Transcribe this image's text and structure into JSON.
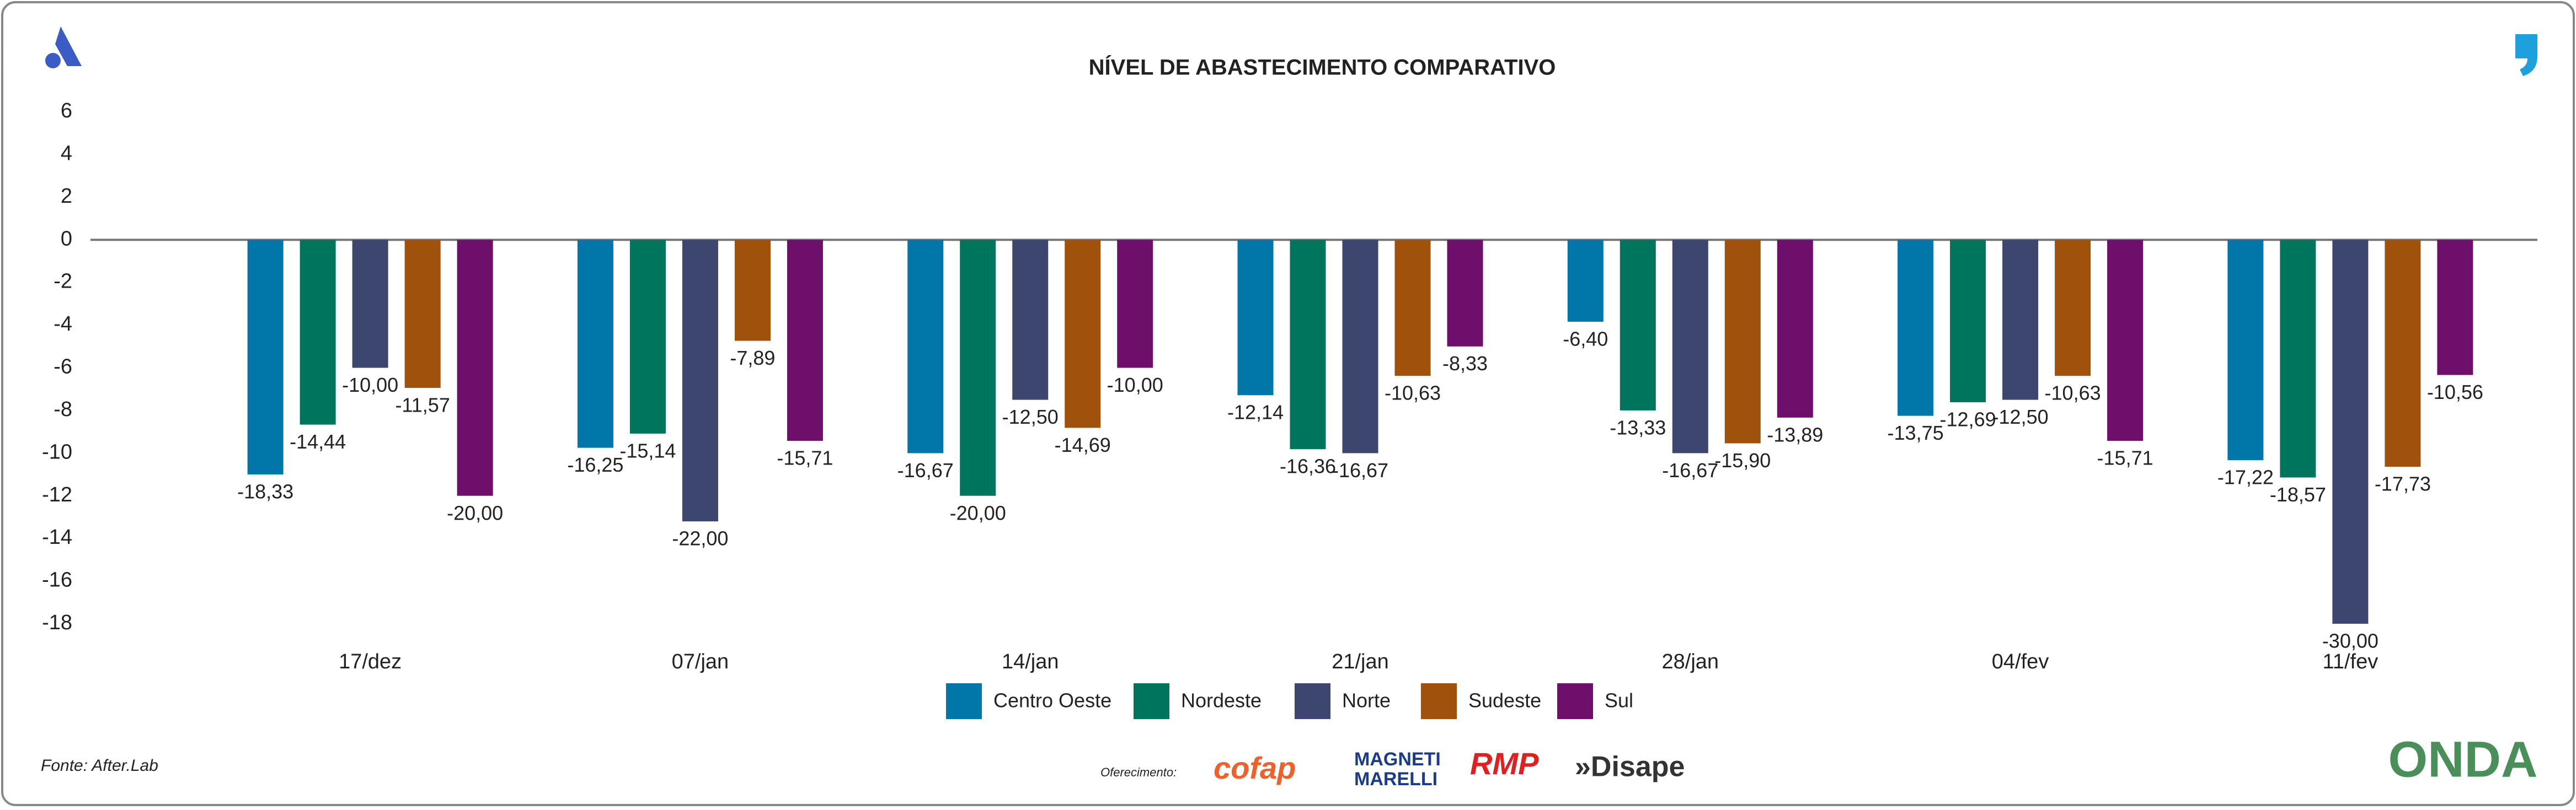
{
  "chart_data": {
    "type": "bar",
    "title": "NÍVEL DE ABASTECIMENTO COMPARATIVO",
    "categories": [
      "17/dez",
      "07/jan",
      "14/jan",
      "21/jan",
      "28/jan",
      "04/fev",
      "11/fev"
    ],
    "series": [
      {
        "name": "Centro Oeste",
        "color": "#0077a8",
        "axis": "y2",
        "values": [
          -18.33,
          -16.25,
          -16.67,
          -12.14,
          -6.4,
          -13.75,
          -17.22
        ],
        "value_labels": [
          "-18,33",
          "-16,25",
          "-16,67",
          "-12,14",
          "-6,40",
          "-13,75",
          "-17,22"
        ]
      },
      {
        "name": "Nordeste",
        "color": "#00755e",
        "axis": "y2",
        "values": [
          -14.44,
          -15.14,
          -20.0,
          -16.36,
          -13.33,
          -12.69,
          -18.57
        ],
        "value_labels": [
          "-14,44",
          "-15,14",
          "-20,00",
          "-16,36",
          "-13,33",
          "-12,69",
          "-18,57"
        ]
      },
      {
        "name": "Norte",
        "color": "#3d466e",
        "axis": "y2",
        "values": [
          -10.0,
          -22.0,
          -12.5,
          -16.67,
          -16.67,
          -12.5,
          -30.0
        ],
        "value_labels": [
          "-10,00",
          "-22,00",
          "-12,50",
          "-16,67",
          "-16,67",
          "-12,50",
          "-30,00"
        ]
      },
      {
        "name": "Sudeste",
        "color": "#a0520c",
        "axis": "y2",
        "values": [
          -11.57,
          -7.89,
          -14.69,
          -10.63,
          -15.9,
          -10.63,
          -17.73
        ],
        "value_labels": [
          "-11,57",
          "-7,89",
          "-14,69",
          "-10,63",
          "-15,90",
          "-10,63",
          "-17,73"
        ]
      },
      {
        "name": "Sul",
        "color": "#6e0f6b",
        "axis": "y2",
        "values": [
          -20.0,
          -15.71,
          -10.0,
          -8.33,
          -13.89,
          -15.71,
          -10.56
        ],
        "value_labels": [
          "-20,00",
          "-15,71",
          "-10,00",
          "-8,33",
          "-13,89",
          "-15,71",
          "-10,56"
        ]
      }
    ],
    "ylim": [
      -18,
      6
    ],
    "yticks": [
      6,
      4,
      2,
      0,
      -2,
      -4,
      -6,
      -8,
      -10,
      -12,
      -14,
      -16,
      -18
    ],
    "y2lim": [
      -30,
      10
    ],
    "grid": false,
    "legend": "bottom"
  },
  "source": "Fonte: After.Lab",
  "sponsor_caption": "Oferecimento:",
  "sponsors": [
    "cofap",
    "MAGNETI",
    "MARELLI",
    "RMP",
    "»Disape"
  ],
  "brand": "ONDA"
}
